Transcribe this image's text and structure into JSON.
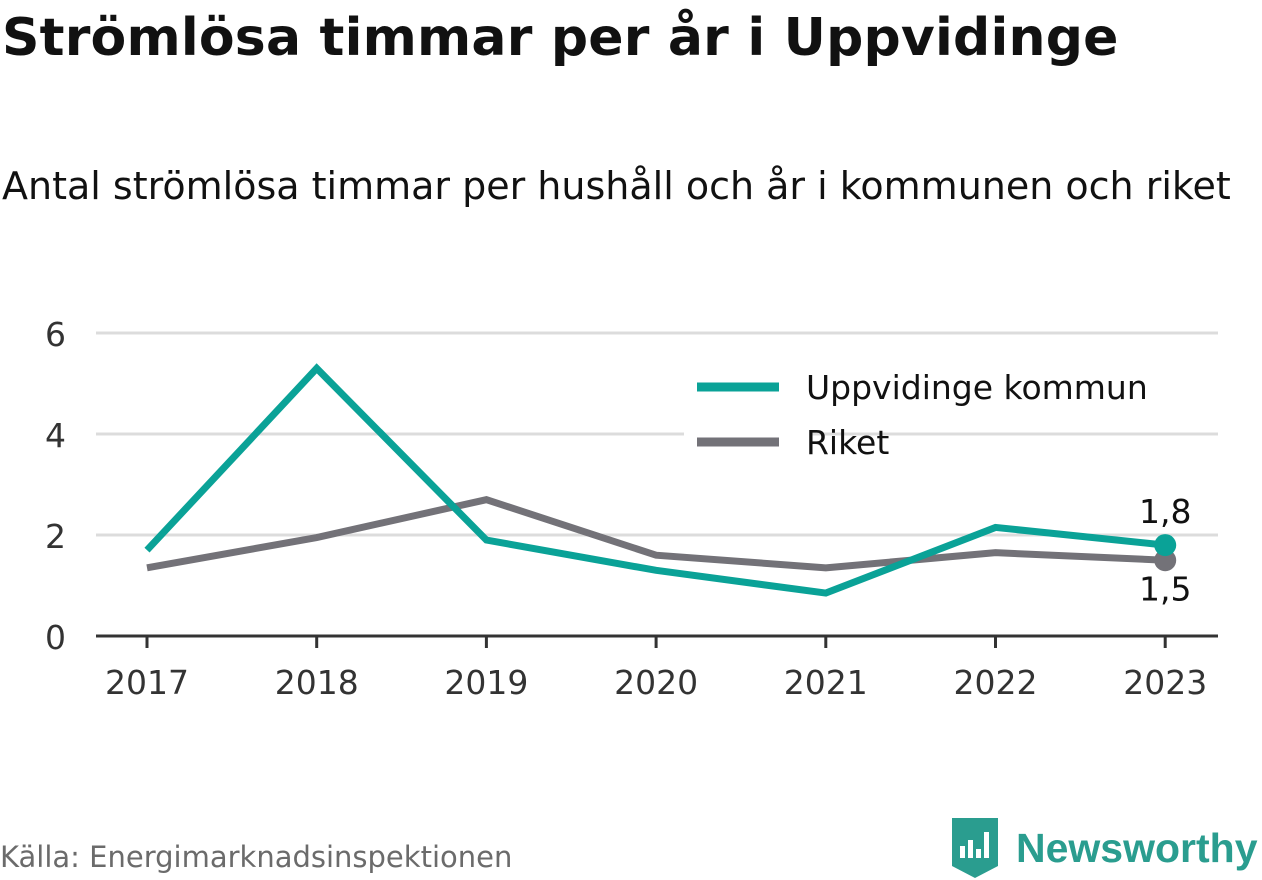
{
  "chart_data": {
    "type": "line",
    "title": "Strömlösa timmar per år i Uppvidinge",
    "subtitle": "Antal strömlösa timmar per hushåll och år i kommunen och riket",
    "x": [
      "2017",
      "2018",
      "2019",
      "2020",
      "2021",
      "2022",
      "2023"
    ],
    "series": [
      {
        "name": "Uppvidinge kommun",
        "color": "#0aa297",
        "values": [
          1.7,
          5.3,
          1.9,
          1.3,
          0.85,
          2.15,
          1.8
        ],
        "end_label": "1,8"
      },
      {
        "name": "Riket",
        "color": "#737278",
        "values": [
          1.35,
          1.95,
          2.7,
          1.6,
          1.35,
          1.65,
          1.5
        ],
        "end_label": "1,5"
      }
    ],
    "yticks": [
      "0",
      "2",
      "4",
      "6"
    ],
    "ylim": [
      0,
      6
    ],
    "grid": true,
    "legend_position": "top-right"
  },
  "footer": {
    "source": "Källa: Energimarknadsinspektionen",
    "brand": "Newsworthy",
    "brand_color": "#2a9d8f"
  }
}
